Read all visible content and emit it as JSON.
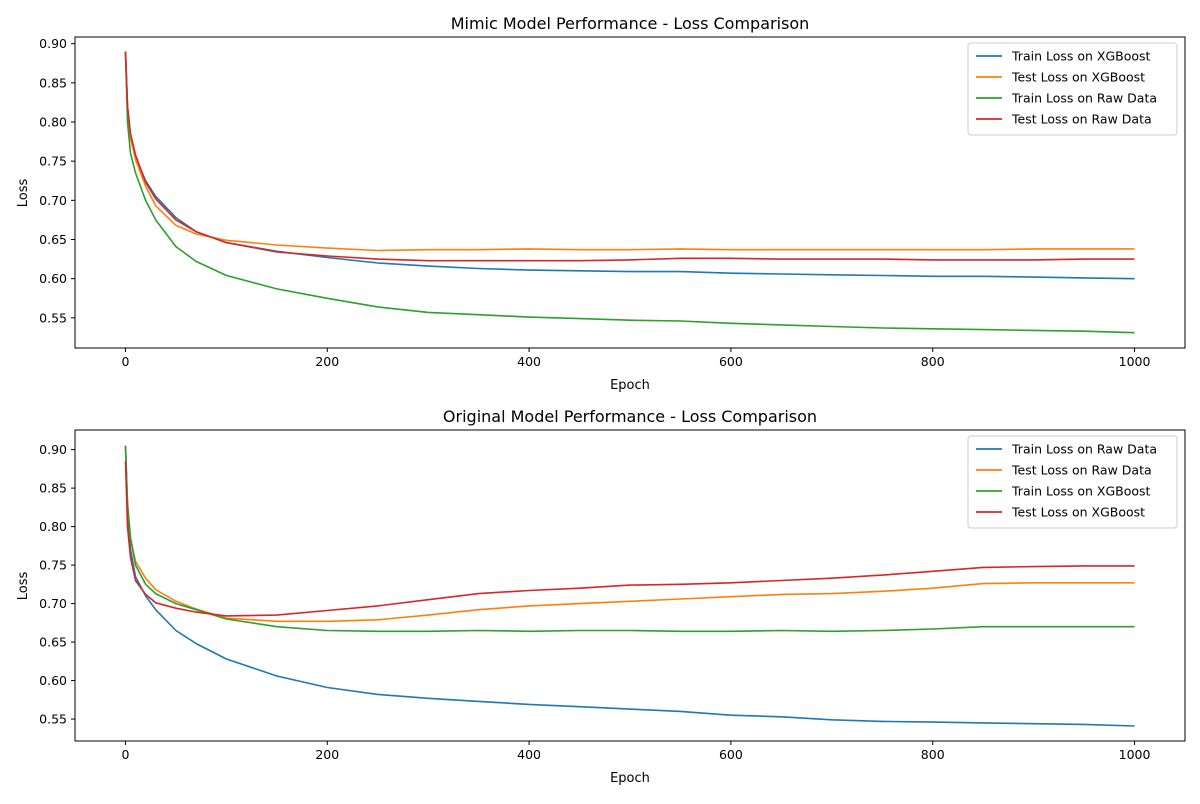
{
  "chart_data": [
    {
      "type": "line",
      "title": "Mimic Model Performance - Loss Comparison",
      "xlabel": "Epoch",
      "ylabel": "Loss",
      "xlim": [
        -50,
        1050
      ],
      "ylim": [
        0.5115,
        0.9085
      ],
      "xticks": [
        0,
        200,
        400,
        600,
        800,
        1000
      ],
      "yticks": [
        0.55,
        0.6,
        0.65,
        0.7,
        0.75,
        0.8,
        0.85,
        0.9
      ],
      "legend_position": "top-right",
      "series": [
        {
          "name": "Train Loss on XGBoost",
          "color": "#1f77b4",
          "x": [
            0,
            2,
            5,
            10,
            20,
            30,
            50,
            70,
            100,
            150,
            200,
            250,
            300,
            350,
            400,
            450,
            500,
            550,
            600,
            650,
            700,
            750,
            800,
            850,
            900,
            950,
            1000
          ],
          "y": [
            0.89,
            0.82,
            0.78,
            0.755,
            0.725,
            0.705,
            0.678,
            0.66,
            0.646,
            0.635,
            0.627,
            0.62,
            0.616,
            0.613,
            0.611,
            0.61,
            0.609,
            0.609,
            0.607,
            0.606,
            0.605,
            0.604,
            0.603,
            0.603,
            0.602,
            0.601,
            0.6
          ]
        },
        {
          "name": "Test Loss on XGBoost",
          "color": "#ff7f0e",
          "x": [
            0,
            2,
            5,
            10,
            20,
            30,
            50,
            70,
            100,
            150,
            200,
            250,
            300,
            350,
            400,
            450,
            500,
            550,
            600,
            650,
            700,
            750,
            800,
            850,
            900,
            950,
            1000
          ],
          "y": [
            0.89,
            0.82,
            0.78,
            0.752,
            0.718,
            0.693,
            0.668,
            0.657,
            0.649,
            0.643,
            0.639,
            0.636,
            0.637,
            0.637,
            0.638,
            0.637,
            0.637,
            0.638,
            0.637,
            0.637,
            0.637,
            0.637,
            0.637,
            0.637,
            0.638,
            0.638,
            0.638
          ]
        },
        {
          "name": "Train Loss on Raw Data",
          "color": "#2ca02c",
          "x": [
            0,
            2,
            5,
            10,
            20,
            30,
            50,
            70,
            100,
            150,
            200,
            250,
            300,
            350,
            400,
            450,
            500,
            550,
            600,
            650,
            700,
            750,
            800,
            850,
            900,
            950,
            1000
          ],
          "y": [
            0.89,
            0.8,
            0.76,
            0.735,
            0.7,
            0.675,
            0.641,
            0.622,
            0.604,
            0.587,
            0.575,
            0.564,
            0.557,
            0.554,
            0.551,
            0.549,
            0.547,
            0.546,
            0.543,
            0.541,
            0.539,
            0.537,
            0.536,
            0.535,
            0.534,
            0.533,
            0.531
          ]
        },
        {
          "name": "Test Loss on Raw Data",
          "color": "#d62728",
          "x": [
            0,
            2,
            5,
            10,
            20,
            30,
            50,
            70,
            100,
            150,
            200,
            250,
            300,
            350,
            400,
            450,
            500,
            550,
            600,
            650,
            700,
            750,
            800,
            850,
            900,
            950,
            1000
          ],
          "y": [
            0.89,
            0.82,
            0.785,
            0.758,
            0.723,
            0.702,
            0.675,
            0.66,
            0.646,
            0.634,
            0.629,
            0.625,
            0.623,
            0.623,
            0.623,
            0.623,
            0.624,
            0.626,
            0.626,
            0.625,
            0.625,
            0.625,
            0.624,
            0.624,
            0.624,
            0.625,
            0.625
          ]
        }
      ]
    },
    {
      "type": "line",
      "title": "Original Model Performance - Loss Comparison",
      "xlabel": "Epoch",
      "ylabel": "Loss",
      "xlim": [
        -50,
        1050
      ],
      "ylim": [
        0.5215,
        0.9255
      ],
      "xticks": [
        0,
        200,
        400,
        600,
        800,
        1000
      ],
      "yticks": [
        0.55,
        0.6,
        0.65,
        0.7,
        0.75,
        0.8,
        0.85,
        0.9
      ],
      "legend_position": "top-right",
      "series": [
        {
          "name": "Train Loss on Raw Data",
          "color": "#1f77b4",
          "x": [
            0,
            2,
            5,
            10,
            20,
            30,
            50,
            70,
            100,
            150,
            200,
            250,
            300,
            350,
            400,
            450,
            500,
            550,
            600,
            650,
            700,
            750,
            800,
            850,
            900,
            950,
            1000
          ],
          "y": [
            0.905,
            0.82,
            0.77,
            0.735,
            0.71,
            0.692,
            0.665,
            0.648,
            0.628,
            0.606,
            0.591,
            0.582,
            0.577,
            0.573,
            0.569,
            0.566,
            0.563,
            0.56,
            0.555,
            0.553,
            0.549,
            0.547,
            0.546,
            0.545,
            0.544,
            0.543,
            0.541
          ]
        },
        {
          "name": "Test Loss on Raw Data",
          "color": "#ff7f0e",
          "x": [
            0,
            2,
            5,
            10,
            20,
            30,
            50,
            70,
            100,
            150,
            200,
            250,
            300,
            350,
            400,
            450,
            500,
            550,
            600,
            650,
            700,
            750,
            800,
            850,
            900,
            950,
            1000
          ],
          "y": [
            0.905,
            0.83,
            0.785,
            0.755,
            0.733,
            0.718,
            0.703,
            0.693,
            0.681,
            0.677,
            0.677,
            0.679,
            0.685,
            0.692,
            0.697,
            0.7,
            0.703,
            0.706,
            0.709,
            0.712,
            0.713,
            0.716,
            0.72,
            0.726,
            0.727,
            0.727,
            0.727
          ]
        },
        {
          "name": "Train Loss on XGBoost",
          "color": "#2ca02c",
          "x": [
            0,
            2,
            5,
            10,
            20,
            30,
            50,
            70,
            100,
            150,
            200,
            250,
            300,
            350,
            400,
            450,
            500,
            550,
            600,
            650,
            700,
            750,
            800,
            850,
            900,
            950,
            1000
          ],
          "y": [
            0.905,
            0.83,
            0.785,
            0.75,
            0.725,
            0.713,
            0.7,
            0.692,
            0.68,
            0.67,
            0.665,
            0.664,
            0.664,
            0.665,
            0.664,
            0.665,
            0.665,
            0.664,
            0.664,
            0.665,
            0.664,
            0.665,
            0.667,
            0.67,
            0.67,
            0.67,
            0.67
          ]
        },
        {
          "name": "Test Loss on XGBoost",
          "color": "#d62728",
          "x": [
            0,
            2,
            5,
            10,
            20,
            30,
            50,
            70,
            100,
            150,
            200,
            250,
            300,
            350,
            400,
            450,
            500,
            550,
            600,
            650,
            700,
            750,
            800,
            850,
            900,
            950,
            1000
          ],
          "y": [
            0.885,
            0.8,
            0.76,
            0.73,
            0.712,
            0.701,
            0.694,
            0.689,
            0.684,
            0.685,
            0.691,
            0.697,
            0.705,
            0.713,
            0.717,
            0.72,
            0.724,
            0.725,
            0.727,
            0.73,
            0.733,
            0.737,
            0.742,
            0.747,
            0.748,
            0.749,
            0.749
          ]
        }
      ]
    }
  ]
}
